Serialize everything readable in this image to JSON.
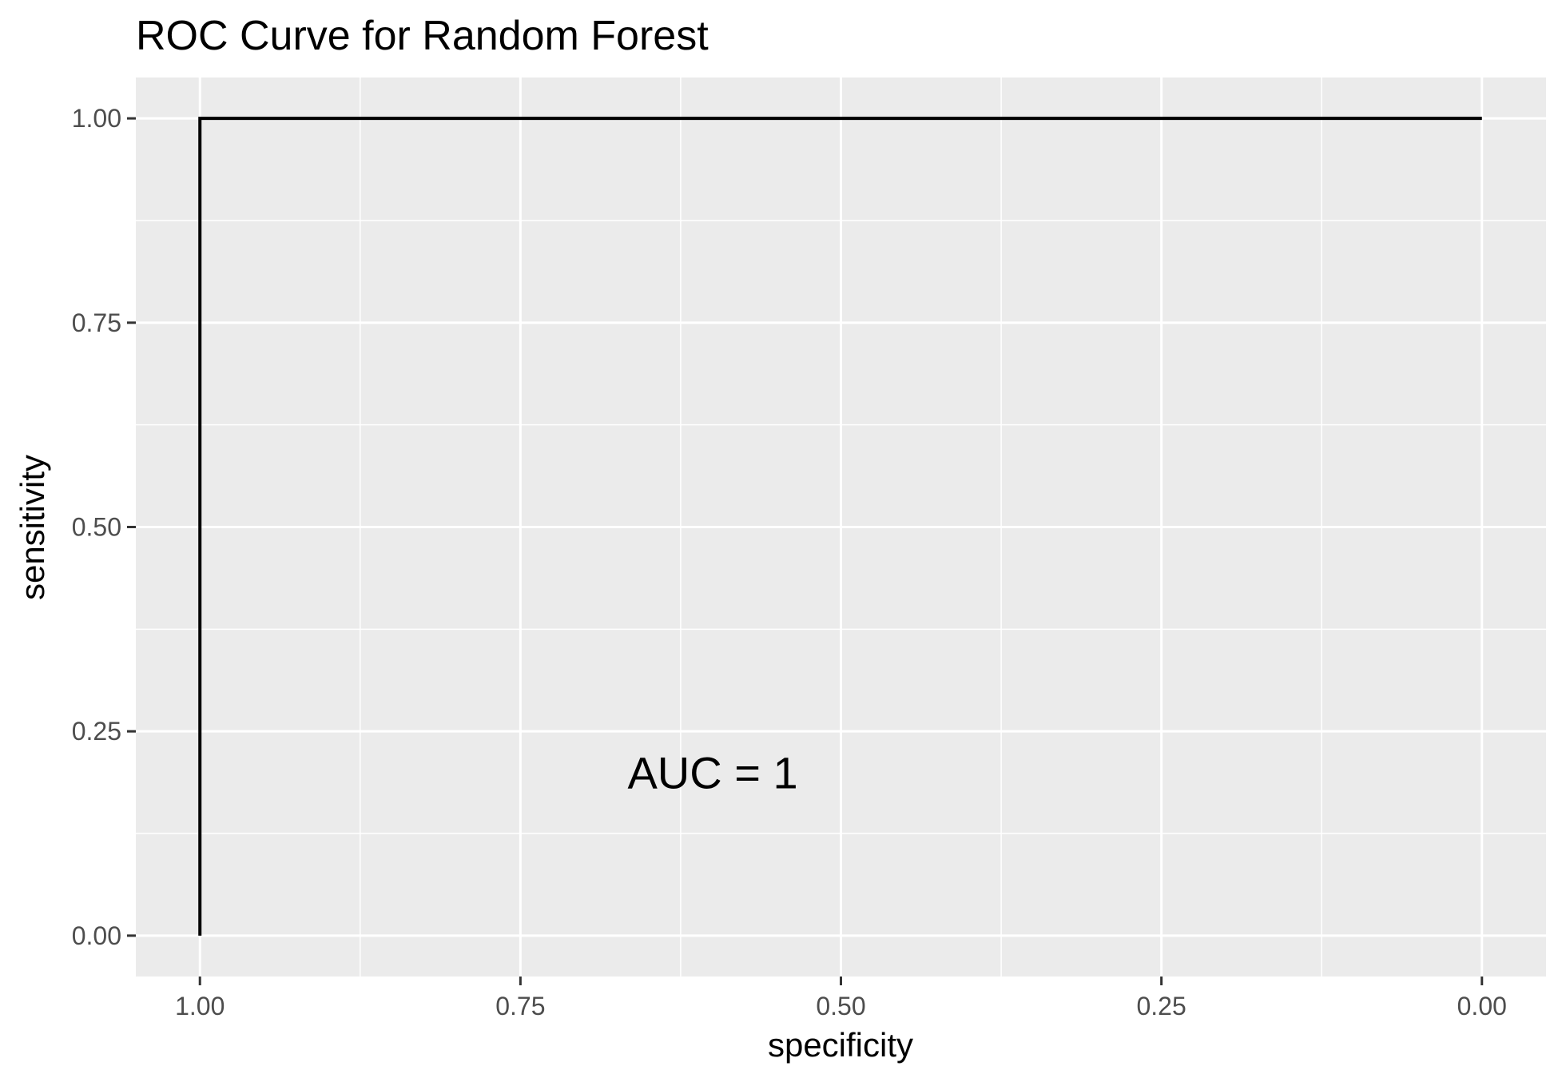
{
  "chart_data": {
    "type": "line",
    "title": "ROC Curve for Random Forest",
    "xlabel": "specificity",
    "ylabel": "sensitivity",
    "x_reversed": true,
    "xlim": [
      1.05,
      -0.05
    ],
    "ylim": [
      -0.05,
      1.05
    ],
    "x_ticks": [
      1.0,
      0.75,
      0.5,
      0.25,
      0.0
    ],
    "x_tick_labels": [
      "1.00",
      "0.75",
      "0.50",
      "0.25",
      "0.00"
    ],
    "y_ticks": [
      0.0,
      0.25,
      0.5,
      0.75,
      1.0
    ],
    "y_tick_labels": [
      "0.00",
      "0.25",
      "0.50",
      "0.75",
      "1.00"
    ],
    "grid": true,
    "series": [
      {
        "x": [
          1.0,
          1.0,
          0.0
        ],
        "y": [
          0.0,
          1.0,
          1.0
        ],
        "color": "#000000"
      }
    ],
    "annotations": [
      {
        "text": "AUC = 1",
        "x": 0.6,
        "y": 0.2
      }
    ]
  }
}
